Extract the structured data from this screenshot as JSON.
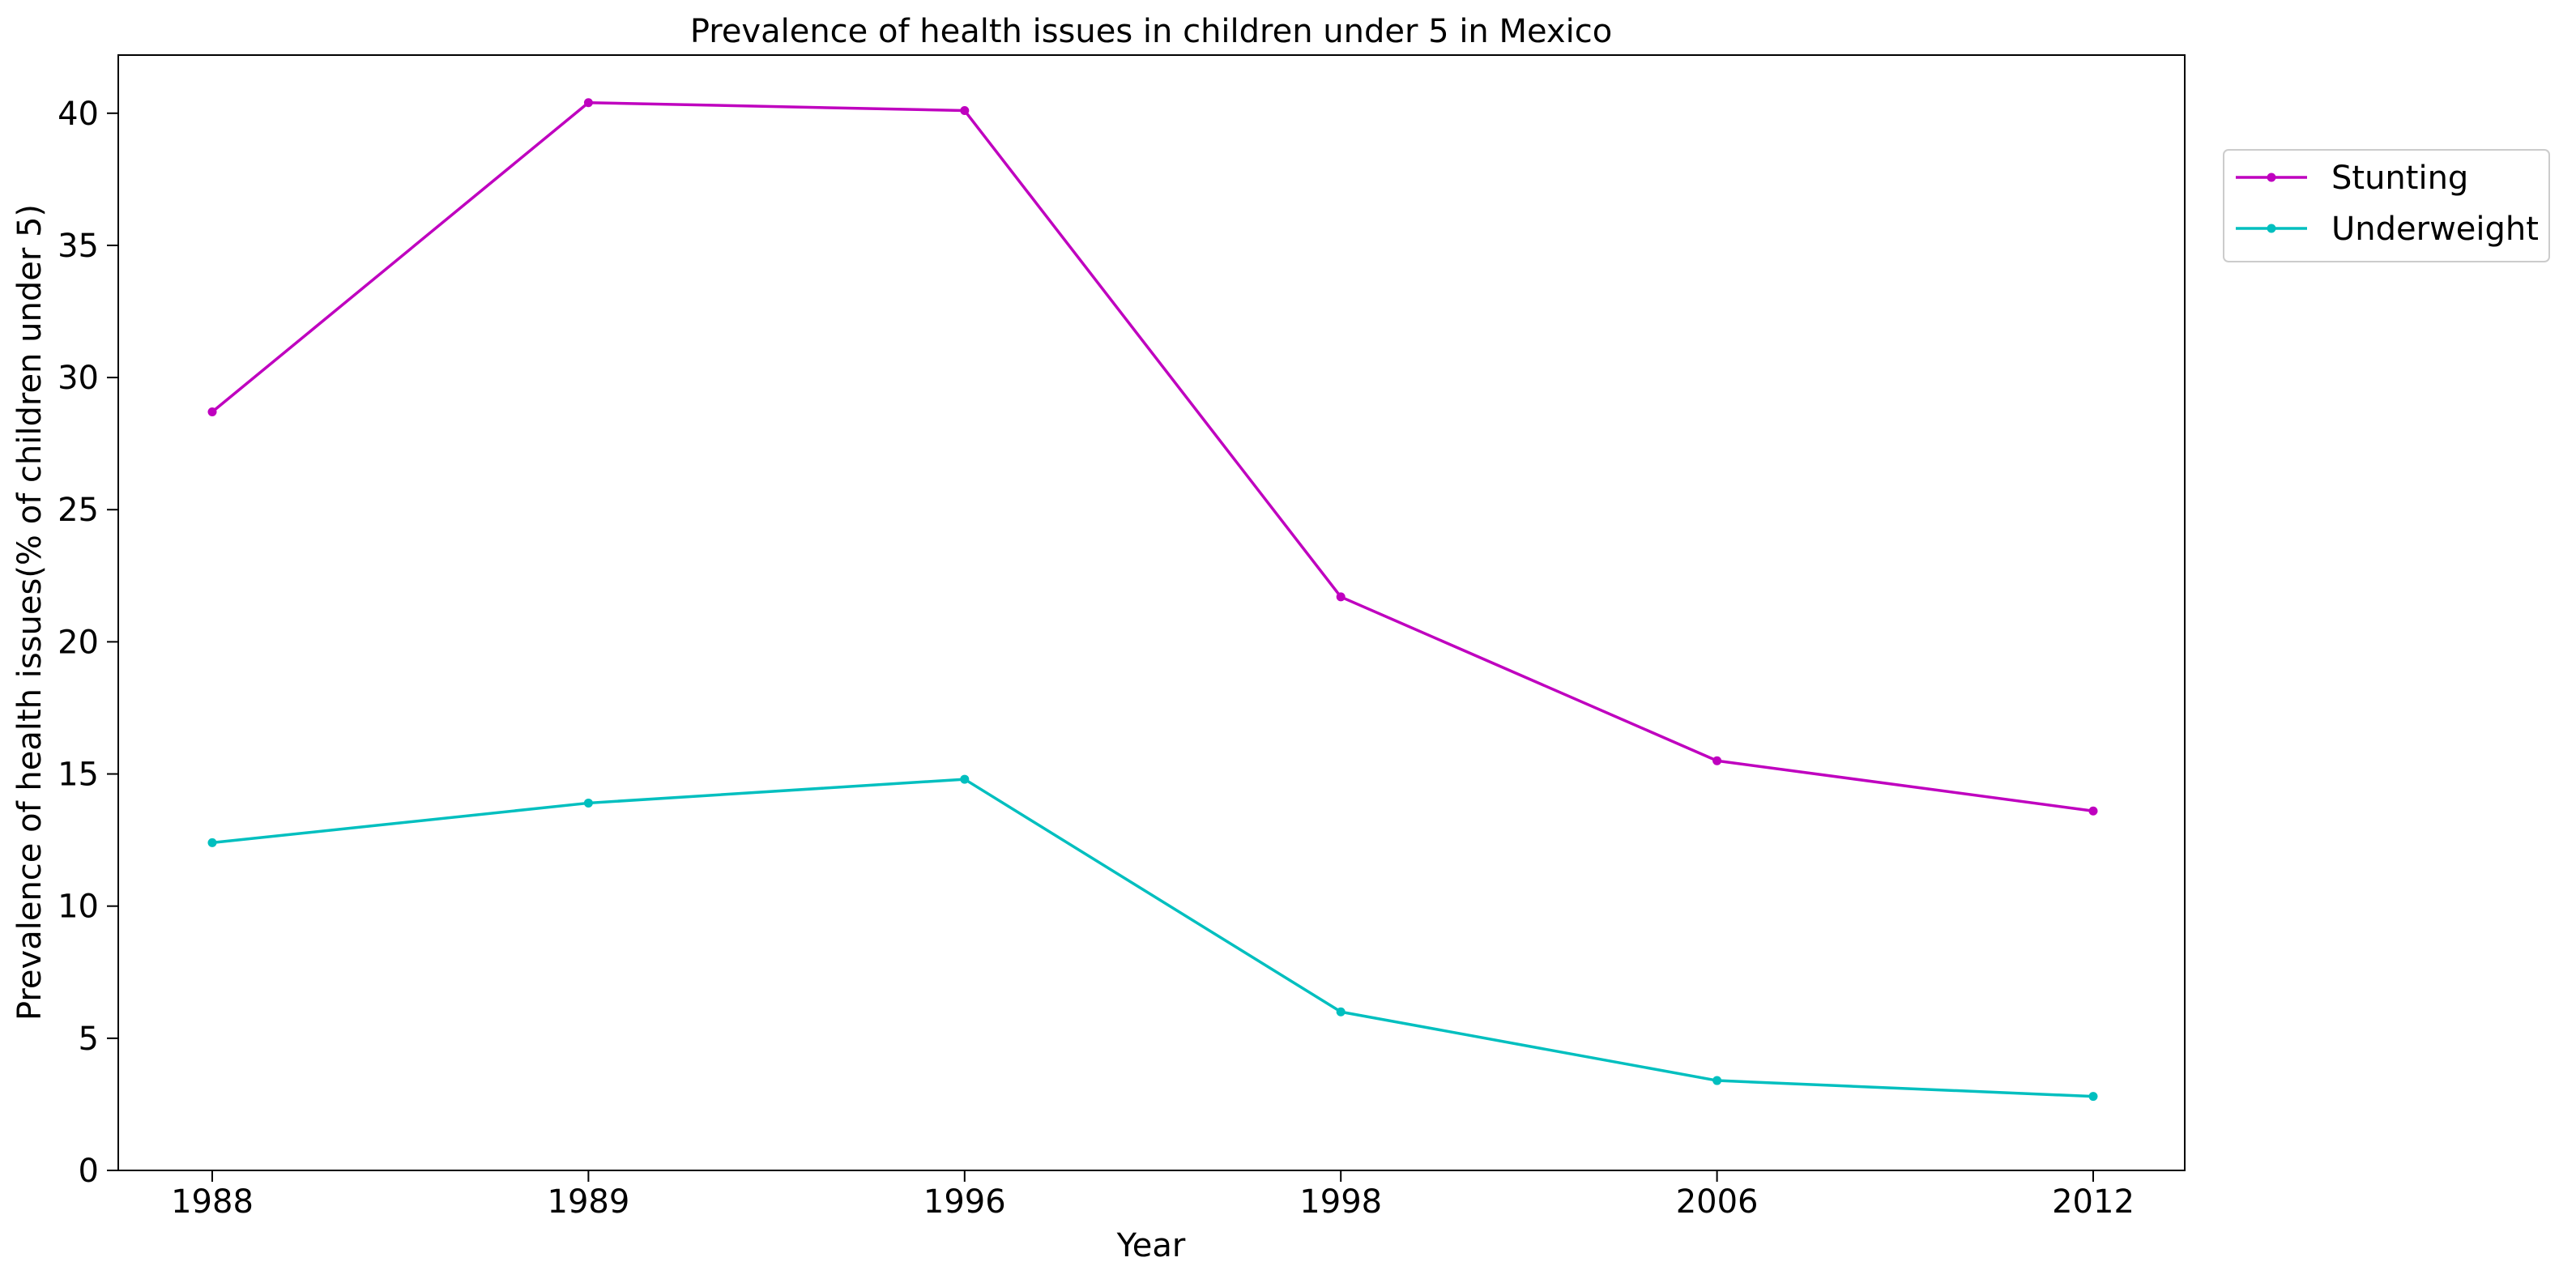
{
  "chart_data": {
    "type": "line",
    "title": "Prevalence of health issues in children under 5 in Mexico",
    "xlabel": "Year",
    "ylabel": "Prevalence of health issues(% of children under 5)",
    "categories": [
      "1988",
      "1989",
      "1996",
      "1998",
      "2006",
      "2012"
    ],
    "ylim": [
      0,
      42.2
    ],
    "yticks": [
      0,
      5,
      10,
      15,
      20,
      25,
      30,
      35,
      40
    ],
    "grid": false,
    "legend_position": "upper right, outside plot",
    "series": [
      {
        "name": "Stunting",
        "color": "#bf00bf",
        "values": [
          28.7,
          40.4,
          40.1,
          21.7,
          15.5,
          13.6
        ]
      },
      {
        "name": "Underweight",
        "color": "#00bfbf",
        "values": [
          12.4,
          13.9,
          14.8,
          6.0,
          3.4,
          2.8
        ]
      }
    ]
  }
}
